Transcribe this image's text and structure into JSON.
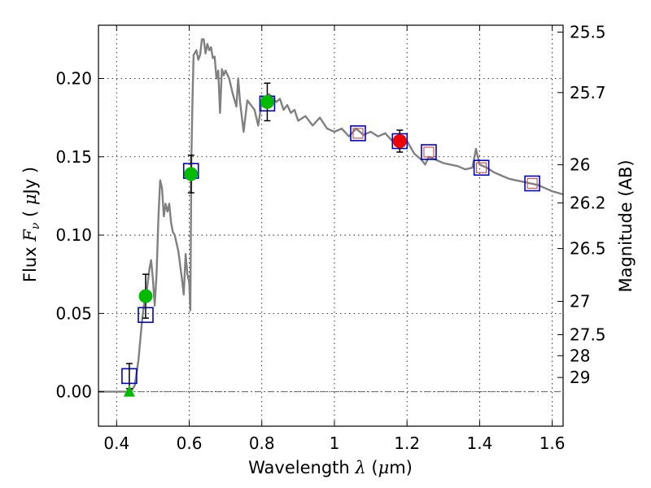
{
  "chart_data": {
    "type": "scatter",
    "xlabel": "Wavelength  λ (μm)",
    "ylabel": "Flux  Fν  ( μJy )",
    "ylabel_right": "Magnitude (AB)",
    "xlim": [
      0.35,
      1.63
    ],
    "ylim": [
      -0.022,
      0.234
    ],
    "x_ticks": [
      0.4,
      0.6,
      0.8,
      1.0,
      1.2,
      1.4,
      1.6
    ],
    "x_tick_labels": [
      "0.4",
      "0.6",
      "0.8",
      "1",
      "1.2",
      "1.4",
      "1.6"
    ],
    "y_ticks": [
      0.0,
      0.05,
      0.1,
      0.15,
      0.2
    ],
    "y_tick_labels": [
      "0.00",
      "0.05",
      "0.10",
      "0.15",
      "0.20"
    ],
    "right_ticks": [
      {
        "label": "25.5",
        "flux": 0.2296
      },
      {
        "label": "25.7",
        "flux": 0.191
      },
      {
        "label": "26",
        "flux": 0.1449
      },
      {
        "label": "26.2",
        "flux": 0.1205
      },
      {
        "label": "26.5",
        "flux": 0.0914
      },
      {
        "label": "27",
        "flux": 0.0577
      },
      {
        "label": "27.5",
        "flux": 0.0364
      },
      {
        "label": "28",
        "flux": 0.023
      },
      {
        "label": "29",
        "flux": 0.0091
      }
    ],
    "grid": true,
    "colors": {
      "model": "#808080",
      "observed_green": "#00bb00",
      "observed_red": "#ee0000",
      "model_box": "#0000cc",
      "model_box_inner": "#cc5555",
      "zero_line": "#666666"
    },
    "series": [
      {
        "name": "template SED",
        "kind": "line",
        "x": [
          0.35,
          0.43,
          0.44,
          0.45,
          0.46,
          0.47,
          0.475,
          0.48,
          0.485,
          0.49,
          0.495,
          0.5,
          0.505,
          0.51,
          0.515,
          0.52,
          0.525,
          0.53,
          0.535,
          0.54,
          0.545,
          0.55,
          0.555,
          0.56,
          0.565,
          0.57,
          0.58,
          0.585,
          0.59,
          0.595,
          0.6,
          0.603,
          0.606,
          0.609,
          0.612,
          0.62,
          0.625,
          0.63,
          0.635,
          0.64,
          0.645,
          0.65,
          0.655,
          0.66,
          0.665,
          0.67,
          0.675,
          0.68,
          0.685,
          0.69,
          0.695,
          0.7,
          0.71,
          0.72,
          0.73,
          0.735,
          0.74,
          0.75,
          0.76,
          0.77,
          0.78,
          0.79,
          0.8,
          0.82,
          0.84,
          0.85,
          0.86,
          0.87,
          0.88,
          0.89,
          0.9,
          0.92,
          0.94,
          0.96,
          0.98,
          1.0,
          1.02,
          1.04,
          1.06,
          1.08,
          1.1,
          1.12,
          1.14,
          1.16,
          1.18,
          1.2,
          1.22,
          1.24,
          1.25,
          1.26,
          1.28,
          1.3,
          1.32,
          1.34,
          1.36,
          1.38,
          1.39,
          1.4,
          1.42,
          1.44,
          1.46,
          1.48,
          1.5,
          1.52,
          1.54,
          1.56,
          1.58,
          1.6,
          1.63
        ],
        "y": [
          0.0,
          0.0,
          0.0,
          0.004,
          0.02,
          0.045,
          0.055,
          0.06,
          0.068,
          0.078,
          0.084,
          0.072,
          0.055,
          0.075,
          0.11,
          0.135,
          0.13,
          0.112,
          0.12,
          0.115,
          0.12,
          0.108,
          0.102,
          0.1,
          0.095,
          0.09,
          0.072,
          0.062,
          0.088,
          0.075,
          0.07,
          0.052,
          0.15,
          0.185,
          0.215,
          0.218,
          0.212,
          0.215,
          0.225,
          0.225,
          0.216,
          0.222,
          0.218,
          0.22,
          0.213,
          0.214,
          0.2,
          0.205,
          0.178,
          0.206,
          0.202,
          0.205,
          0.2,
          0.19,
          0.182,
          0.2,
          0.185,
          0.166,
          0.186,
          0.183,
          0.18,
          0.17,
          0.185,
          0.19,
          0.185,
          0.187,
          0.18,
          0.183,
          0.178,
          0.18,
          0.173,
          0.176,
          0.17,
          0.175,
          0.168,
          0.166,
          0.168,
          0.163,
          0.168,
          0.164,
          0.166,
          0.163,
          0.165,
          0.16,
          0.155,
          0.16,
          0.152,
          0.148,
          0.145,
          0.15,
          0.148,
          0.146,
          0.145,
          0.144,
          0.142,
          0.143,
          0.155,
          0.145,
          0.143,
          0.14,
          0.138,
          0.136,
          0.135,
          0.134,
          0.133,
          0.132,
          0.13,
          0.128,
          0.126
        ]
      },
      {
        "name": "observed (green circles)",
        "kind": "points",
        "x": [
          0.48,
          0.605,
          0.815
        ],
        "y": [
          0.061,
          0.139,
          0.185
        ],
        "yerr": [
          0.014,
          0.012,
          0.012
        ]
      },
      {
        "name": "observed (red circle)",
        "kind": "points",
        "x": [
          1.18
        ],
        "y": [
          0.16
        ],
        "yerr": [
          0.007
        ]
      },
      {
        "name": "upper limit (green triangle)",
        "kind": "triangle",
        "x": [
          0.435
        ],
        "y": [
          0.0
        ]
      },
      {
        "name": "model photometry (squares)",
        "kind": "squares",
        "x": [
          0.435,
          0.48,
          0.605,
          0.815,
          1.065,
          1.18,
          1.26,
          1.405,
          1.545
        ],
        "y": [
          0.01,
          0.049,
          0.141,
          0.184,
          0.165,
          0.16,
          0.153,
          0.143,
          0.133
        ],
        "inner": [
          false,
          false,
          false,
          false,
          true,
          true,
          true,
          true,
          true
        ]
      }
    ],
    "errorbar_extra": [
      {
        "x": 0.435,
        "y": 0.01,
        "yerr": 0.008
      }
    ]
  }
}
